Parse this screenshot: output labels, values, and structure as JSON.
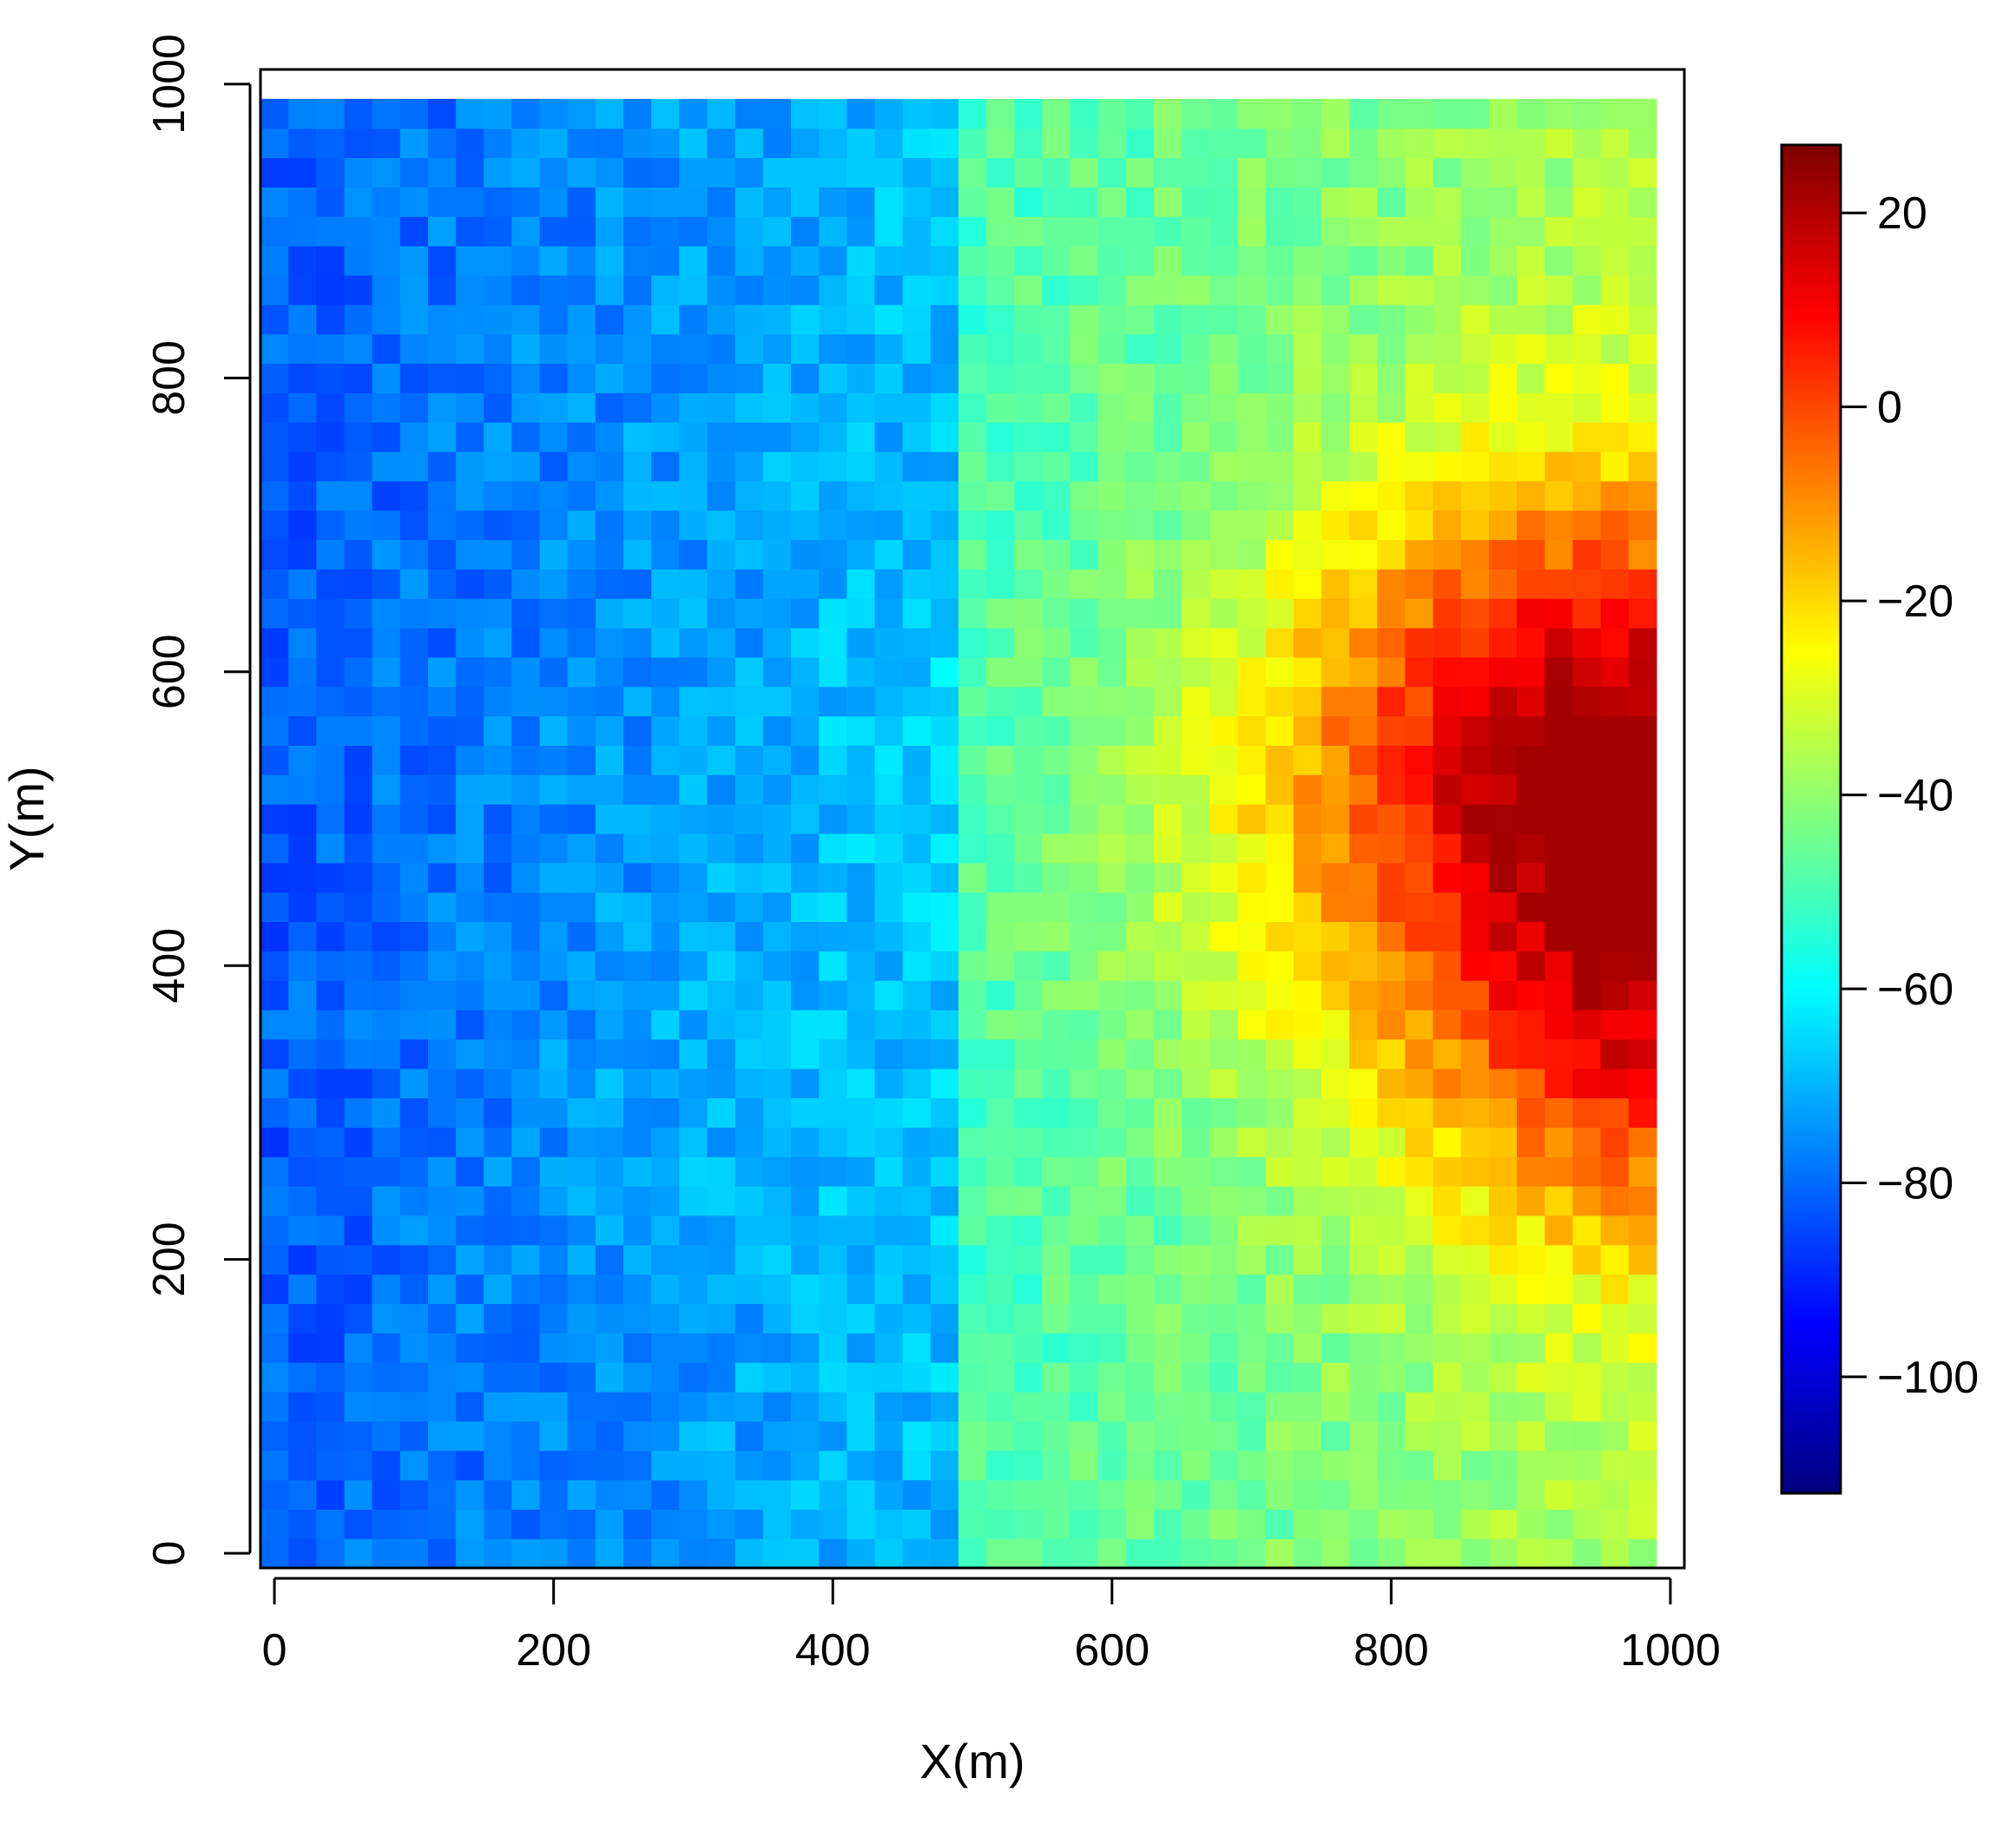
{
  "chart_data": {
    "type": "heatmap",
    "title": "",
    "xlabel": "X(m)",
    "ylabel": "Y(m)",
    "xlim": [
      -10,
      1010
    ],
    "ylim": [
      -10,
      1010
    ],
    "x_ticks": [
      0,
      200,
      400,
      600,
      800,
      1000
    ],
    "y_ticks": [
      0,
      200,
      400,
      600,
      800,
      1000
    ],
    "grid": false,
    "legend": "colorbar-right",
    "grid_cells": {
      "nx": 50,
      "ny": 50,
      "cell_size": 20,
      "x_start": -10,
      "y_start": -10
    },
    "field_summary": {
      "description": "Left half (x < 500) ~ -80 to -65; right half (x >= 500) ~ -50 to -35 rising to a maximum of ~22 near x=990, y=480",
      "left_min": -90,
      "left_max": -60,
      "right_min": -55,
      "right_max": 22,
      "discontinuity_x": 500,
      "peak": {
        "x": 990,
        "y": 480,
        "value": 22
      }
    },
    "colorbar": {
      "min": -112,
      "max": 27,
      "ticks": [
        -100,
        -80,
        -60,
        -40,
        -20,
        0,
        20
      ],
      "colormap": [
        "#00007f",
        "#0000ff",
        "#007fff",
        "#00ffff",
        "#7fff7f",
        "#ffff00",
        "#ff7f00",
        "#ff0000",
        "#7f0000"
      ]
    }
  }
}
